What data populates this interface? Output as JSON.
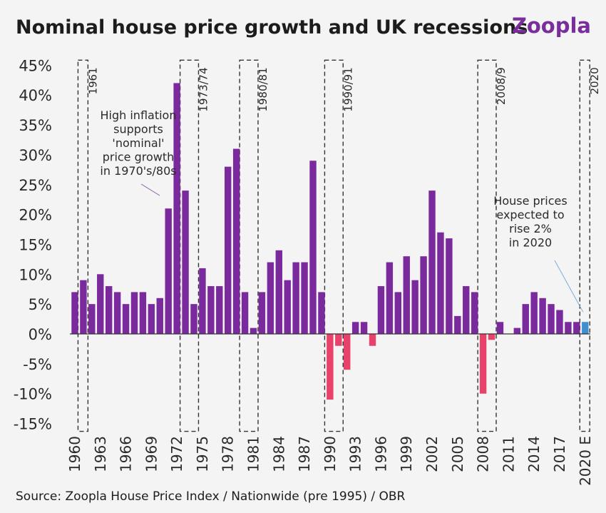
{
  "header": {
    "title": "Nominal house price growth and UK recessions",
    "brand": "Zoopla",
    "brand_color": "#7a2d9c"
  },
  "source": "Source: Zoopla House Price Index / Nationwide (pre 1995) / OBR",
  "colors": {
    "positive": "#7b2a9d",
    "negative": "#e8416a",
    "estimate": "#3d8fcf",
    "axis": "#333333",
    "recession_box": "#333333",
    "background": "#f4f4f4"
  },
  "chart_data": {
    "type": "bar",
    "title": "Nominal house price growth and UK recessions",
    "xlabel": "",
    "ylabel": "",
    "ylim": [
      -15,
      45
    ],
    "yticks": [
      45,
      40,
      35,
      30,
      25,
      20,
      15,
      10,
      5,
      0,
      -5,
      -10,
      -15
    ],
    "ytick_labels": [
      "45%",
      "40%",
      "35%",
      "30%",
      "25%",
      "20%",
      "15%",
      "10%",
      "5%",
      "0%",
      "-5%",
      "-10%",
      "-15%"
    ],
    "grid": false,
    "categories": [
      "1960",
      "1961",
      "1962",
      "1963",
      "1964",
      "1965",
      "1966",
      "1967",
      "1968",
      "1969",
      "1970",
      "1971",
      "1972",
      "1973",
      "1974",
      "1975",
      "1976",
      "1977",
      "1978",
      "1979",
      "1980",
      "1981",
      "1982",
      "1983",
      "1984",
      "1985",
      "1986",
      "1987",
      "1988",
      "1989",
      "1990",
      "1991",
      "1992",
      "1993",
      "1994",
      "1995",
      "1996",
      "1997",
      "1998",
      "1999",
      "2000",
      "2001",
      "2002",
      "2003",
      "2004",
      "2005",
      "2006",
      "2007",
      "2008",
      "2009",
      "2010",
      "2011",
      "2012",
      "2013",
      "2014",
      "2015",
      "2016",
      "2017",
      "2018",
      "2019",
      "2020 E"
    ],
    "values": [
      7,
      9,
      5,
      10,
      8,
      7,
      5,
      7,
      7,
      5,
      6,
      21,
      42,
      24,
      5,
      11,
      8,
      8,
      28,
      31,
      7,
      1,
      7,
      12,
      14,
      9,
      12,
      12,
      29,
      7,
      -11,
      -2,
      -6,
      2,
      2,
      -2,
      8,
      12,
      7,
      13,
      9,
      13,
      24,
      17,
      16,
      3,
      8,
      7,
      -10,
      -1,
      2,
      0,
      1,
      5,
      7,
      6,
      5,
      4,
      2,
      2,
      2
    ],
    "estimate_index": 60,
    "x_tick_labels": [
      "1960",
      "1963",
      "1966",
      "1969",
      "1972",
      "1975",
      "1978",
      "1981",
      "1984",
      "1987",
      "1990",
      "1993",
      "1996",
      "1999",
      "2002",
      "2005",
      "2008",
      "2011",
      "2014",
      "2017",
      "2020 E"
    ],
    "recessions": [
      {
        "label": "1961",
        "start": "1961",
        "end": "1961"
      },
      {
        "label": "1973/74",
        "start": "1973",
        "end": "1974"
      },
      {
        "label": "1980/81",
        "start": "1980",
        "end": "1981"
      },
      {
        "label": "1990/91",
        "start": "1990",
        "end": "1991"
      },
      {
        "label": "2008/9",
        "start": "2008",
        "end": "2009"
      },
      {
        "label": "2020",
        "start": "2020 E",
        "end": "2020 E"
      }
    ],
    "annotations": [
      {
        "lines": [
          "High inflation",
          "supports",
          "'nominal'",
          "price growth",
          "in 1970's/80s"
        ],
        "points_to": "1971"
      },
      {
        "lines": [
          "House prices",
          "expected to",
          "rise 2%",
          "in 2020"
        ],
        "points_to": "2020 E"
      }
    ]
  }
}
